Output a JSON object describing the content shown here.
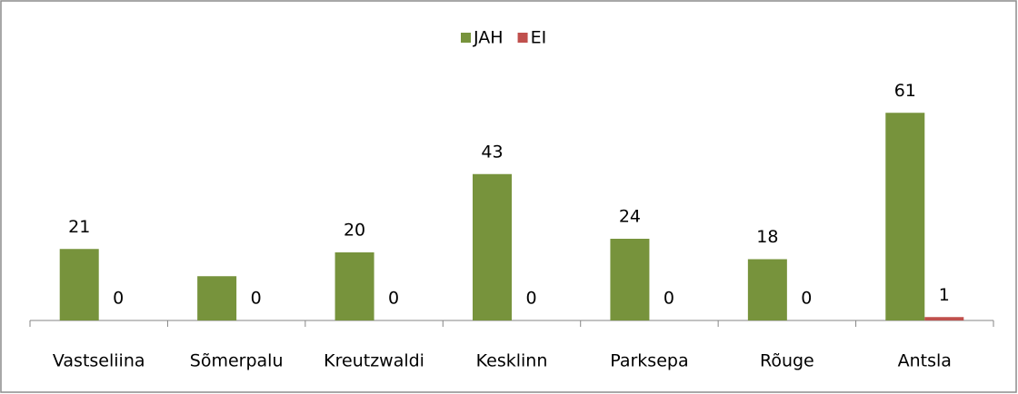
{
  "chart_data": {
    "type": "bar",
    "categories": [
      "Vastseliina",
      "Sõmerpalu",
      "Kreutzwaldi",
      "Kesklinn",
      "Parksepa",
      "Rõuge",
      "Antsla"
    ],
    "series": [
      {
        "name": "JAH",
        "color": "#77933c",
        "values": [
          21,
          13,
          20,
          43,
          24,
          18,
          61
        ],
        "value_labels": [
          "21",
          null,
          "20",
          "43",
          "24",
          "18",
          "61"
        ]
      },
      {
        "name": "EI",
        "color": "#c0504d",
        "values": [
          0,
          0,
          0,
          0,
          0,
          0,
          1
        ]
      }
    ],
    "legend": "top"
  }
}
